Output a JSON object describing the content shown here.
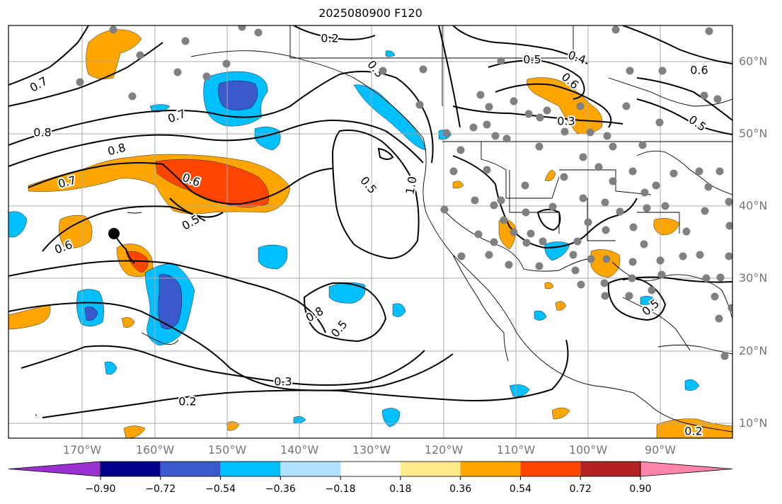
{
  "title": "2025080900 F120",
  "lon_labels": [
    "170°W",
    "160°W",
    "150°W",
    "140°W",
    "130°W",
    "120°W",
    "110°W",
    "100°W",
    "90°W"
  ],
  "lat_labels": [
    "60°N",
    "50°N",
    "40°N",
    "30°N",
    "20°N",
    "10°N"
  ],
  "colorbar": {
    "ticks": [
      "−0.90",
      "−0.72",
      "−0.54",
      "−0.36",
      "−0.18",
      "0.18",
      "0.36",
      "0.54",
      "0.72",
      "0.90"
    ],
    "colors": [
      "#9b30d0",
      "#00008b",
      "#3a5acb",
      "#00bfff",
      "#b0e2ff",
      "#ffffff",
      "#ffe98a",
      "#ffa500",
      "#ff4500",
      "#b22222",
      "#ff85aa"
    ]
  },
  "contour_labels": [
    "0.2",
    "0.5",
    "0.4",
    "0.6",
    "0.3",
    "0.5",
    "0.7",
    "0.6",
    "0.8",
    "0.7",
    "0.8",
    "0.7",
    "0.6",
    "0.5",
    "0.6",
    "0.5",
    "1.0",
    "0.8",
    "0.5",
    "0.5",
    "0.3",
    "0.2",
    "0.3",
    "0.2"
  ],
  "shading_colors": {
    "positive": "#ffa500",
    "strong_positive": "#ff4500",
    "negative": "#00bfff",
    "strong_negative": "#3a5acb"
  },
  "station_marker_color": "#808080",
  "storm_marker_color": "#000000"
}
